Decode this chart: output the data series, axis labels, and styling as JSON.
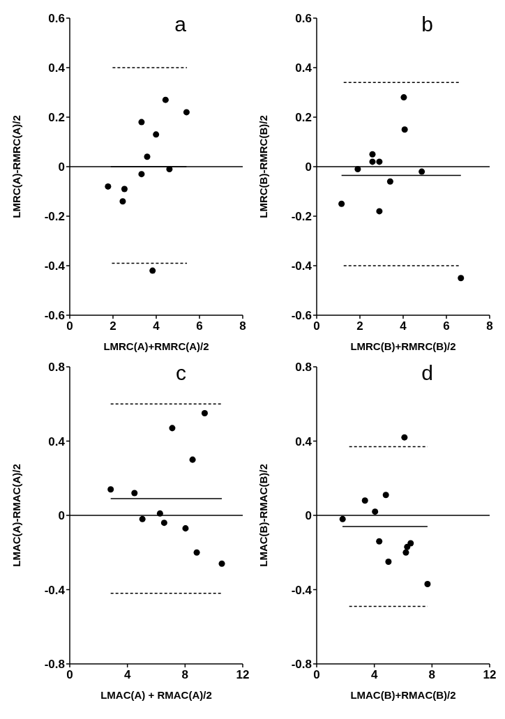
{
  "chart_data": [
    {
      "type": "scatter",
      "title": "a",
      "xlabel": "LMRC(A)+RMRC(A)/2",
      "ylabel": "LMRC(A)-RMRC(A)/2",
      "xlim": [
        0,
        8
      ],
      "xticks": [
        0,
        2,
        4,
        6,
        8
      ],
      "ylim": [
        -0.6,
        0.6
      ],
      "yticks": [
        -0.6,
        -0.4,
        -0.2,
        0,
        0.2,
        0.4,
        0.6
      ],
      "marker": "circle",
      "grid": false,
      "ref_lines": [
        {
          "axis": "y",
          "value": 0,
          "color": "#000000",
          "line_style": "solid"
        }
      ],
      "series": [
        {
          "type": "scatter",
          "color": "#000000",
          "x": [
            1.77,
            2.45,
            2.53,
            3.32,
            3.32,
            3.58,
            3.83,
            3.99,
            4.43,
            4.61,
            5.4
          ],
          "values": [
            -0.08,
            -0.14,
            -0.09,
            0.18,
            -0.03,
            0.04,
            -0.42,
            0.13,
            0.27,
            -0.01,
            0.22
          ]
        },
        {
          "type": "line",
          "color": "#000000",
          "line_style": "solid",
          "marker": "none",
          "x": [
            1.9,
            5.4
          ],
          "values": [
            0,
            0
          ]
        },
        {
          "type": "line",
          "color": "#000000",
          "line_style": "dashed",
          "marker": "none",
          "x": [
            1.98,
            5.42
          ],
          "values": [
            0.4,
            0.4
          ]
        },
        {
          "type": "line",
          "color": "#000000",
          "line_style": "dashed",
          "marker": "none",
          "x": [
            1.95,
            5.42
          ],
          "values": [
            -0.39,
            -0.39
          ]
        }
      ]
    },
    {
      "type": "scatter",
      "title": "b",
      "xlabel": "LMRC(B)+RMRC(B)/2",
      "ylabel": "LMRC(B)-RMRC(B)/2",
      "xlim": [
        0,
        8
      ],
      "xticks": [
        0,
        2,
        4,
        6,
        8
      ],
      "ylim": [
        -0.6,
        0.6
      ],
      "yticks": [
        -0.6,
        -0.4,
        -0.2,
        0,
        0.2,
        0.4,
        0.6
      ],
      "marker": "circle",
      "grid": false,
      "ref_lines": [
        {
          "axis": "y",
          "value": 0,
          "color": "#000000",
          "line_style": "solid"
        }
      ],
      "series": [
        {
          "type": "scatter",
          "color": "#000000",
          "x": [
            1.15,
            1.9,
            2.58,
            2.58,
            2.9,
            2.9,
            3.4,
            4.03,
            4.07,
            4.86,
            6.67
          ],
          "values": [
            -0.15,
            -0.01,
            0.05,
            0.02,
            0.02,
            -0.18,
            -0.06,
            0.28,
            0.15,
            -0.02,
            -0.45
          ]
        },
        {
          "type": "line",
          "color": "#000000",
          "line_style": "solid",
          "marker": "none",
          "x": [
            1.15,
            6.67
          ],
          "values": [
            -0.035,
            -0.035
          ]
        },
        {
          "type": "line",
          "color": "#000000",
          "line_style": "dashed",
          "marker": "none",
          "x": [
            1.25,
            6.67
          ],
          "values": [
            0.34,
            0.34
          ]
        },
        {
          "type": "line",
          "color": "#000000",
          "line_style": "dashed",
          "marker": "none",
          "x": [
            1.25,
            6.57
          ],
          "values": [
            -0.4,
            -0.4
          ]
        }
      ]
    },
    {
      "type": "scatter",
      "title": "c",
      "xlabel": "LMAC(A) + RMAC(A)/2",
      "ylabel": "LMAC(A)-RMAC(A)/2",
      "xlim": [
        0,
        12
      ],
      "xticks": [
        0,
        4,
        8,
        12
      ],
      "ylim": [
        -0.8,
        0.8
      ],
      "yticks": [
        -0.8,
        -0.4,
        0,
        0.4,
        0.8
      ],
      "marker": "circle",
      "grid": false,
      "ref_lines": [
        {
          "axis": "y",
          "value": 0,
          "color": "#000000",
          "line_style": "solid"
        }
      ],
      "series": [
        {
          "type": "scatter",
          "color": "#000000",
          "x": [
            2.84,
            4.49,
            5.04,
            6.26,
            6.55,
            7.11,
            8.03,
            8.52,
            8.81,
            9.36,
            10.55
          ],
          "values": [
            0.14,
            0.12,
            -0.02,
            0.01,
            -0.04,
            0.47,
            -0.07,
            0.3,
            -0.2,
            0.55,
            -0.26
          ]
        },
        {
          "type": "line",
          "color": "#000000",
          "line_style": "solid",
          "marker": "none",
          "x": [
            2.84,
            10.55
          ],
          "values": [
            0.09,
            0.09
          ]
        },
        {
          "type": "line",
          "color": "#000000",
          "line_style": "dashed",
          "marker": "none",
          "x": [
            2.84,
            10.55
          ],
          "values": [
            0.6,
            0.6
          ]
        },
        {
          "type": "line",
          "color": "#000000",
          "line_style": "dashed",
          "marker": "none",
          "x": [
            2.84,
            10.55
          ],
          "values": [
            -0.42,
            -0.42
          ]
        }
      ]
    },
    {
      "type": "scatter",
      "title": "d",
      "xlabel": "LMAC(B)+RMAC(B)/2",
      "ylabel": "LMAC(B)-RMAC(B)/2",
      "xlim": [
        0,
        12
      ],
      "xticks": [
        0,
        4,
        8,
        12
      ],
      "ylim": [
        -0.8,
        0.8
      ],
      "yticks": [
        -0.8,
        -0.4,
        0,
        0.4,
        0.8
      ],
      "marker": "circle",
      "grid": false,
      "ref_lines": [
        {
          "axis": "y",
          "value": 0,
          "color": "#000000",
          "line_style": "solid"
        }
      ],
      "series": [
        {
          "type": "scatter",
          "color": "#000000",
          "x": [
            1.8,
            3.35,
            4.05,
            4.34,
            4.8,
            4.98,
            6.09,
            6.19,
            6.28,
            6.52,
            7.69
          ],
          "values": [
            -0.02,
            0.08,
            0.02,
            -0.14,
            0.11,
            -0.25,
            0.42,
            -0.2,
            -0.17,
            -0.15,
            -0.37
          ]
        },
        {
          "type": "line",
          "color": "#000000",
          "line_style": "solid",
          "marker": "none",
          "x": [
            1.79,
            7.69
          ],
          "values": [
            -0.06,
            -0.06
          ]
        },
        {
          "type": "line",
          "color": "#000000",
          "line_style": "dashed",
          "marker": "none",
          "x": [
            2.26,
            7.69
          ],
          "values": [
            0.37,
            0.37
          ]
        },
        {
          "type": "line",
          "color": "#000000",
          "line_style": "dashed",
          "marker": "none",
          "x": [
            2.26,
            7.69
          ],
          "values": [
            -0.49,
            -0.49
          ]
        }
      ]
    }
  ]
}
